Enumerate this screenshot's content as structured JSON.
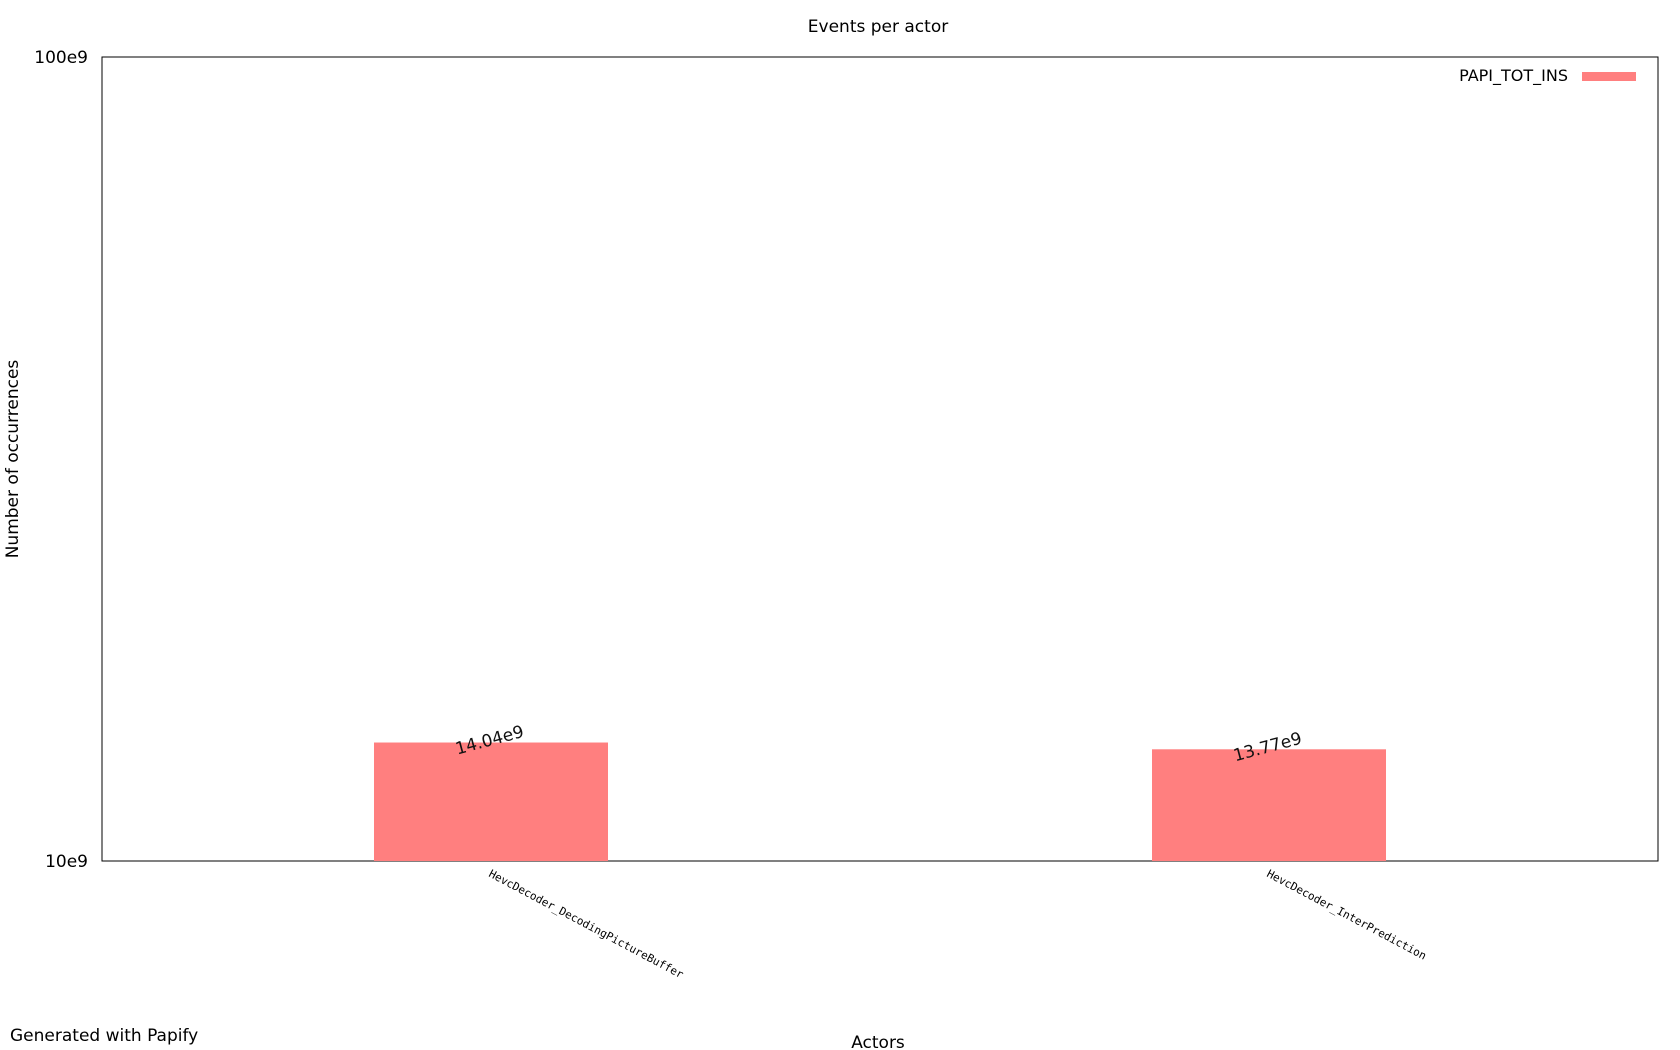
{
  "chart_data": {
    "type": "bar",
    "title": "Events per actor",
    "xlabel": "Actors",
    "ylabel": "Number of occurrences",
    "yscale": "log",
    "ylim": [
      10000000000,
      100000000000
    ],
    "y_tick_labels": [
      "10e9",
      "100e9"
    ],
    "categories": [
      "HevcDecoder_DecodingPictureBuffer",
      "HevcDecoder_InterPrediction"
    ],
    "series": [
      {
        "name": "PAPI_TOT_INS",
        "color": "#ff7f7f",
        "values": [
          14040000000,
          13770000000
        ],
        "value_labels": [
          "14.04e9",
          "13.77e9"
        ]
      }
    ],
    "legend": "top-right",
    "grid": false
  },
  "footer": {
    "text": "Generated with Papify"
  }
}
